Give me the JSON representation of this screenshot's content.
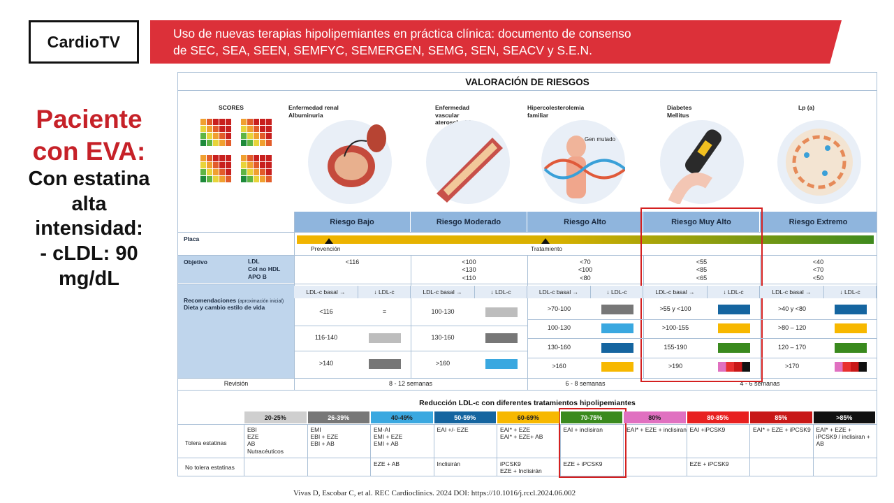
{
  "brand": "CardioTV",
  "banner": {
    "line1": "Uso de nuevas terapias hipolipemiantes en práctica clínica: documento de consenso",
    "line2": "de SEC, SEA, SEEN, SEMFYC, SEMERGEN, SEMG, SEN, SEACV y S.E.N."
  },
  "left": {
    "line1": "Paciente",
    "line2": "con EVA:",
    "line3": "Con estatina",
    "line4": "alta",
    "line5": "intensidad:",
    "line6": "- cLDL: 90",
    "line7": "mg/dL"
  },
  "figure": {
    "title": "VALORACIÓN DE RIESGOS",
    "illustrations": [
      {
        "label": "SCORES"
      },
      {
        "label": "Enfermedad renal\nAlbuminuria"
      },
      {
        "label": "Enfermedad\nvascular\naterosclerótica"
      },
      {
        "label": "Hipercolesterolemia\nfamiliar",
        "extra": "Gen mutado"
      },
      {
        "label": "Diabetes\nMellitus"
      },
      {
        "label": "Lp (a)"
      }
    ],
    "risk_levels": [
      "Riesgo Bajo",
      "Riesgo Moderado",
      "Riesgo Alto",
      "Riesgo Muy Alto",
      "Riesgo Extremo"
    ],
    "placa": {
      "label": "Placa",
      "marker1": "Prevención",
      "marker2": "Tratamiento"
    },
    "objetivo": {
      "label": "Objetivo",
      "sublabels": [
        "LDL",
        "Col no HDL",
        "APO B"
      ],
      "values": [
        "<116",
        "<100\n<130\n<110",
        "<70\n<100\n<80",
        "<55\n<85\n<65",
        "<40\n<70\n<50"
      ]
    },
    "recomendaciones": {
      "label": "Recomendaciones",
      "label_small": "(aproximación inicial)",
      "label2": "Dieta y cambio estilo de vida",
      "basal_header": "LDL-c basal →",
      "reduc_header": "↓ LDL-c",
      "bajo": [
        "<116",
        "116-140",
        ">140"
      ],
      "bajo_equal": "=",
      "moderado": [
        "100-130",
        "130-160",
        ">160"
      ],
      "alto": [
        ">70-100",
        "100-130",
        "130-160",
        ">160"
      ],
      "muy_alto": [
        ">55 y <100",
        ">100-155",
        "155-190",
        ">190"
      ],
      "extremo": [
        ">40 y <80",
        ">80 – 120",
        "120 – 170",
        ">170"
      ]
    },
    "revision": {
      "label": "Revisión",
      "v1": "8 - 12 semanas",
      "v2": "6 - 8 semanas",
      "v3": "4 - 6 semanas"
    },
    "reduction_title": "Reducción LDL-c con diferentes tratamientos hipolipemiantes",
    "pcts": [
      "20-25%",
      "26-39%",
      "40-49%",
      "50-59%",
      "60-69%",
      "70-75%",
      "80%",
      "80-85%",
      "85%",
      ">85%"
    ],
    "tolera_label": "Tolera estatinas",
    "notolera_label": "No tolera estatinas",
    "tolera": [
      "EBI\nEZE\nAB\nNutracéuticos",
      "EMI\nEBI + EZE\nEBI + AB",
      "EM-AI\nEMI + EZE\nEMI + AB",
      "EAI +/- EZE",
      "EAI* + EZE\nEAI* + EZE+ AB",
      "EAI + inclisiran",
      "EAI* + EZE + inclisiran",
      "EAI +iPCSK9",
      "EAI* + EZE + iPCSK9",
      "EAI* + EZE +\niPCSK9 / inclisiran +\nAB"
    ],
    "notolera": [
      "",
      "",
      "EZE + AB",
      "Inclisirán",
      "iPCSK9\nEZE + Inclisirán",
      "EZE + iPCSK9",
      "",
      "EZE + iPCSK9",
      "",
      ""
    ]
  },
  "footer": "Vivas D, Escobar C, et al. REC Cardioclinics. 2024 DOI: https://10.1016/j.rccl.2024.06.002"
}
